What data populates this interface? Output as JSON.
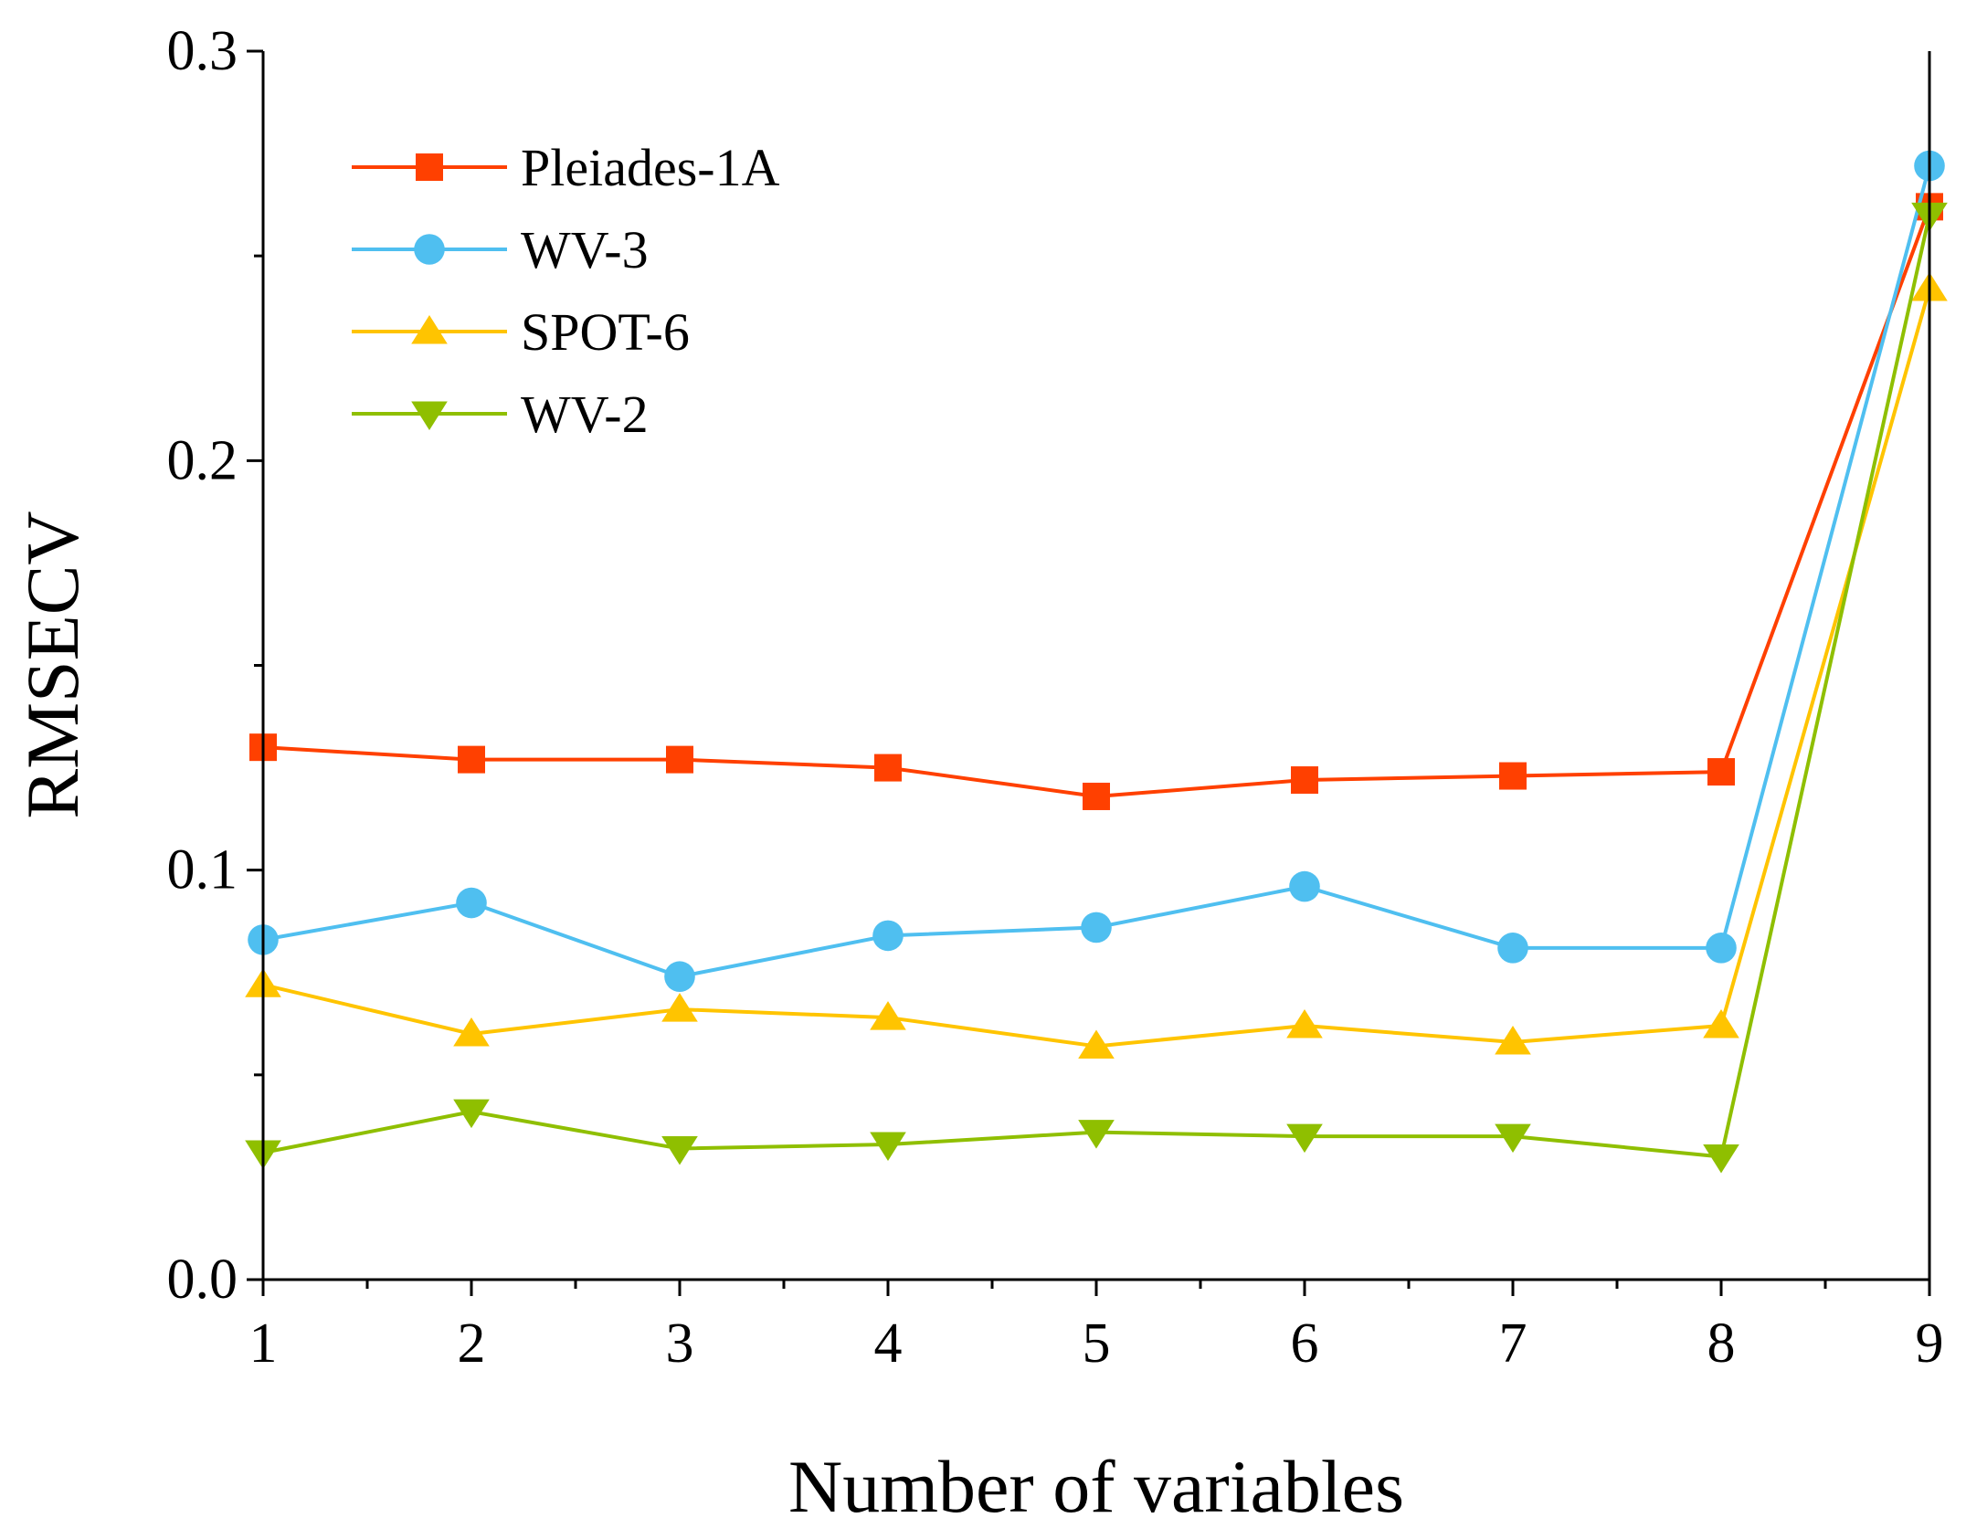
{
  "chart_data": {
    "type": "line",
    "title": "",
    "xlabel": "Number of variables",
    "ylabel": "RMSECV",
    "x": [
      1,
      2,
      3,
      4,
      5,
      6,
      7,
      8,
      9
    ],
    "xlim": [
      1,
      9
    ],
    "ylim": [
      0,
      0.3
    ],
    "yticks": [
      0.0,
      0.1,
      0.2,
      0.3
    ],
    "ytick_labels": [
      "0.0",
      "0.1",
      "0.2",
      "0.3"
    ],
    "xtick_labels": [
      "1",
      "2",
      "3",
      "4",
      "5",
      "6",
      "7",
      "8",
      "9"
    ],
    "legend_position": "top-left",
    "grid": false,
    "series": [
      {
        "name": "Pleiades-1A",
        "color": "#ff4000",
        "marker": "square",
        "values": [
          0.13,
          0.127,
          0.127,
          0.125,
          0.118,
          0.122,
          0.123,
          0.124,
          0.262
        ]
      },
      {
        "name": "WV-3",
        "color": "#4fbff0",
        "marker": "circle",
        "values": [
          0.083,
          0.092,
          0.074,
          0.084,
          0.086,
          0.096,
          0.081,
          0.081,
          0.272
        ]
      },
      {
        "name": "SPOT-6",
        "color": "#ffc400",
        "marker": "triangle-up",
        "values": [
          0.072,
          0.06,
          0.066,
          0.064,
          0.057,
          0.062,
          0.058,
          0.062,
          0.242
        ]
      },
      {
        "name": "WV-2",
        "color": "#8fbf00",
        "marker": "triangle-down",
        "values": [
          0.031,
          0.041,
          0.032,
          0.033,
          0.036,
          0.035,
          0.035,
          0.03,
          0.26
        ]
      }
    ]
  }
}
